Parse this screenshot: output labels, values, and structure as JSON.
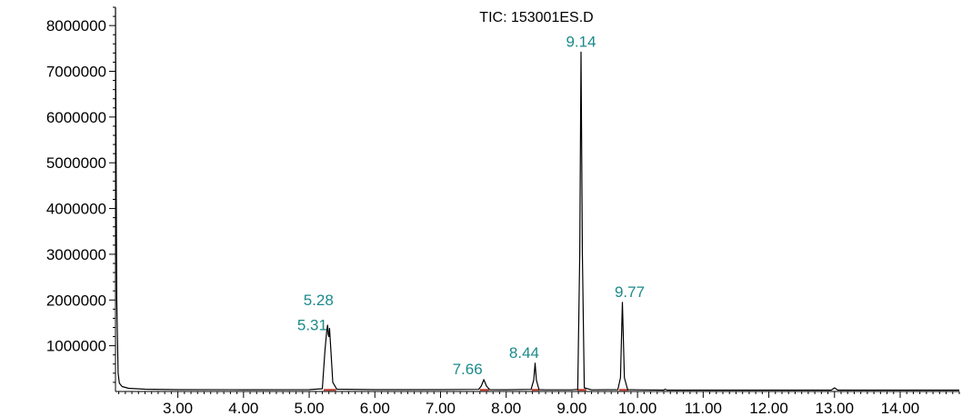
{
  "chart_data": {
    "type": "line",
    "title": "TIC: 153001ES.D",
    "xlabel": "",
    "ylabel": "",
    "xlim": [
      2.05,
      14.9
    ],
    "ylim": [
      0,
      8400000
    ],
    "x_ticks": [
      "3.00",
      "4.00",
      "5.00",
      "6.00",
      "7.00",
      "8.00",
      "9.00",
      "10.00",
      "11.00",
      "12.00",
      "13.00",
      "14.00"
    ],
    "y_ticks": [
      "1000000",
      "2000000",
      "3000000",
      "4000000",
      "5000000",
      "6000000",
      "7000000",
      "8000000"
    ],
    "grid": false,
    "legend": "none",
    "series": [
      {
        "color": "#000000",
        "x": [
          2.05,
          2.07,
          2.09,
          2.11,
          2.15,
          2.25,
          2.5,
          3.0,
          4.0,
          5.0,
          5.2,
          5.24,
          5.27,
          5.28,
          5.29,
          5.3,
          5.31,
          5.33,
          5.36,
          5.42,
          6.0,
          7.0,
          7.58,
          7.62,
          7.66,
          7.7,
          7.75,
          8.0,
          8.38,
          8.42,
          8.44,
          8.46,
          8.5,
          8.6,
          9.0,
          9.09,
          9.12,
          9.14,
          9.16,
          9.19,
          9.3,
          9.7,
          9.74,
          9.77,
          9.8,
          9.85,
          10.0,
          10.4,
          10.42,
          10.45,
          11.0,
          12.0,
          12.95,
          13.0,
          13.05,
          14.0,
          14.9
        ],
        "y": [
          8400000,
          2000000,
          400000,
          180000,
          110000,
          70000,
          50000,
          40000,
          38000,
          40000,
          60000,
          900000,
          1350000,
          1450000,
          1250000,
          1200000,
          1380000,
          900000,
          200000,
          50000,
          40000,
          40000,
          45000,
          120000,
          260000,
          120000,
          40000,
          38000,
          45000,
          250000,
          620000,
          250000,
          40000,
          35000,
          35000,
          45000,
          3000000,
          7420000,
          3000000,
          80000,
          35000,
          40000,
          300000,
          1950000,
          300000,
          40000,
          35000,
          30000,
          50000,
          30000,
          30000,
          30000,
          30000,
          80000,
          30000,
          30000,
          30000
        ]
      }
    ],
    "baselines": [
      {
        "color": "#c0392b",
        "x": [
          5.22,
          5.41
        ],
        "y": [
          35000,
          35000
        ]
      },
      {
        "color": "#c0392b",
        "x": [
          7.6,
          7.74
        ],
        "y": [
          35000,
          35000
        ]
      },
      {
        "color": "#c0392b",
        "x": [
          8.39,
          8.5
        ],
        "y": [
          35000,
          35000
        ]
      },
      {
        "color": "#c0392b",
        "x": [
          9.08,
          9.22
        ],
        "y": [
          35000,
          35000
        ]
      },
      {
        "color": "#c0392b",
        "x": [
          9.72,
          9.86
        ],
        "y": [
          35000,
          35000
        ]
      }
    ],
    "peak_color": "#1b8a8a",
    "peaks": [
      {
        "label": "5.28",
        "x": 5.28,
        "y": 1450000,
        "dx": -10,
        "dy": -22
      },
      {
        "label": "5.31",
        "x": 5.31,
        "y": 1380000,
        "dx": -19,
        "dy": 2
      },
      {
        "label": "7.66",
        "x": 7.66,
        "y": 260000,
        "dx": -18,
        "dy": -6
      },
      {
        "label": "8.44",
        "x": 8.44,
        "y": 620000,
        "dx": -12,
        "dy": -6
      },
      {
        "label": "9.14",
        "x": 9.14,
        "y": 7420000,
        "dx": 0,
        "dy": -6
      },
      {
        "label": "9.77",
        "x": 9.77,
        "y": 1950000,
        "dx": 8,
        "dy": -6
      }
    ]
  }
}
